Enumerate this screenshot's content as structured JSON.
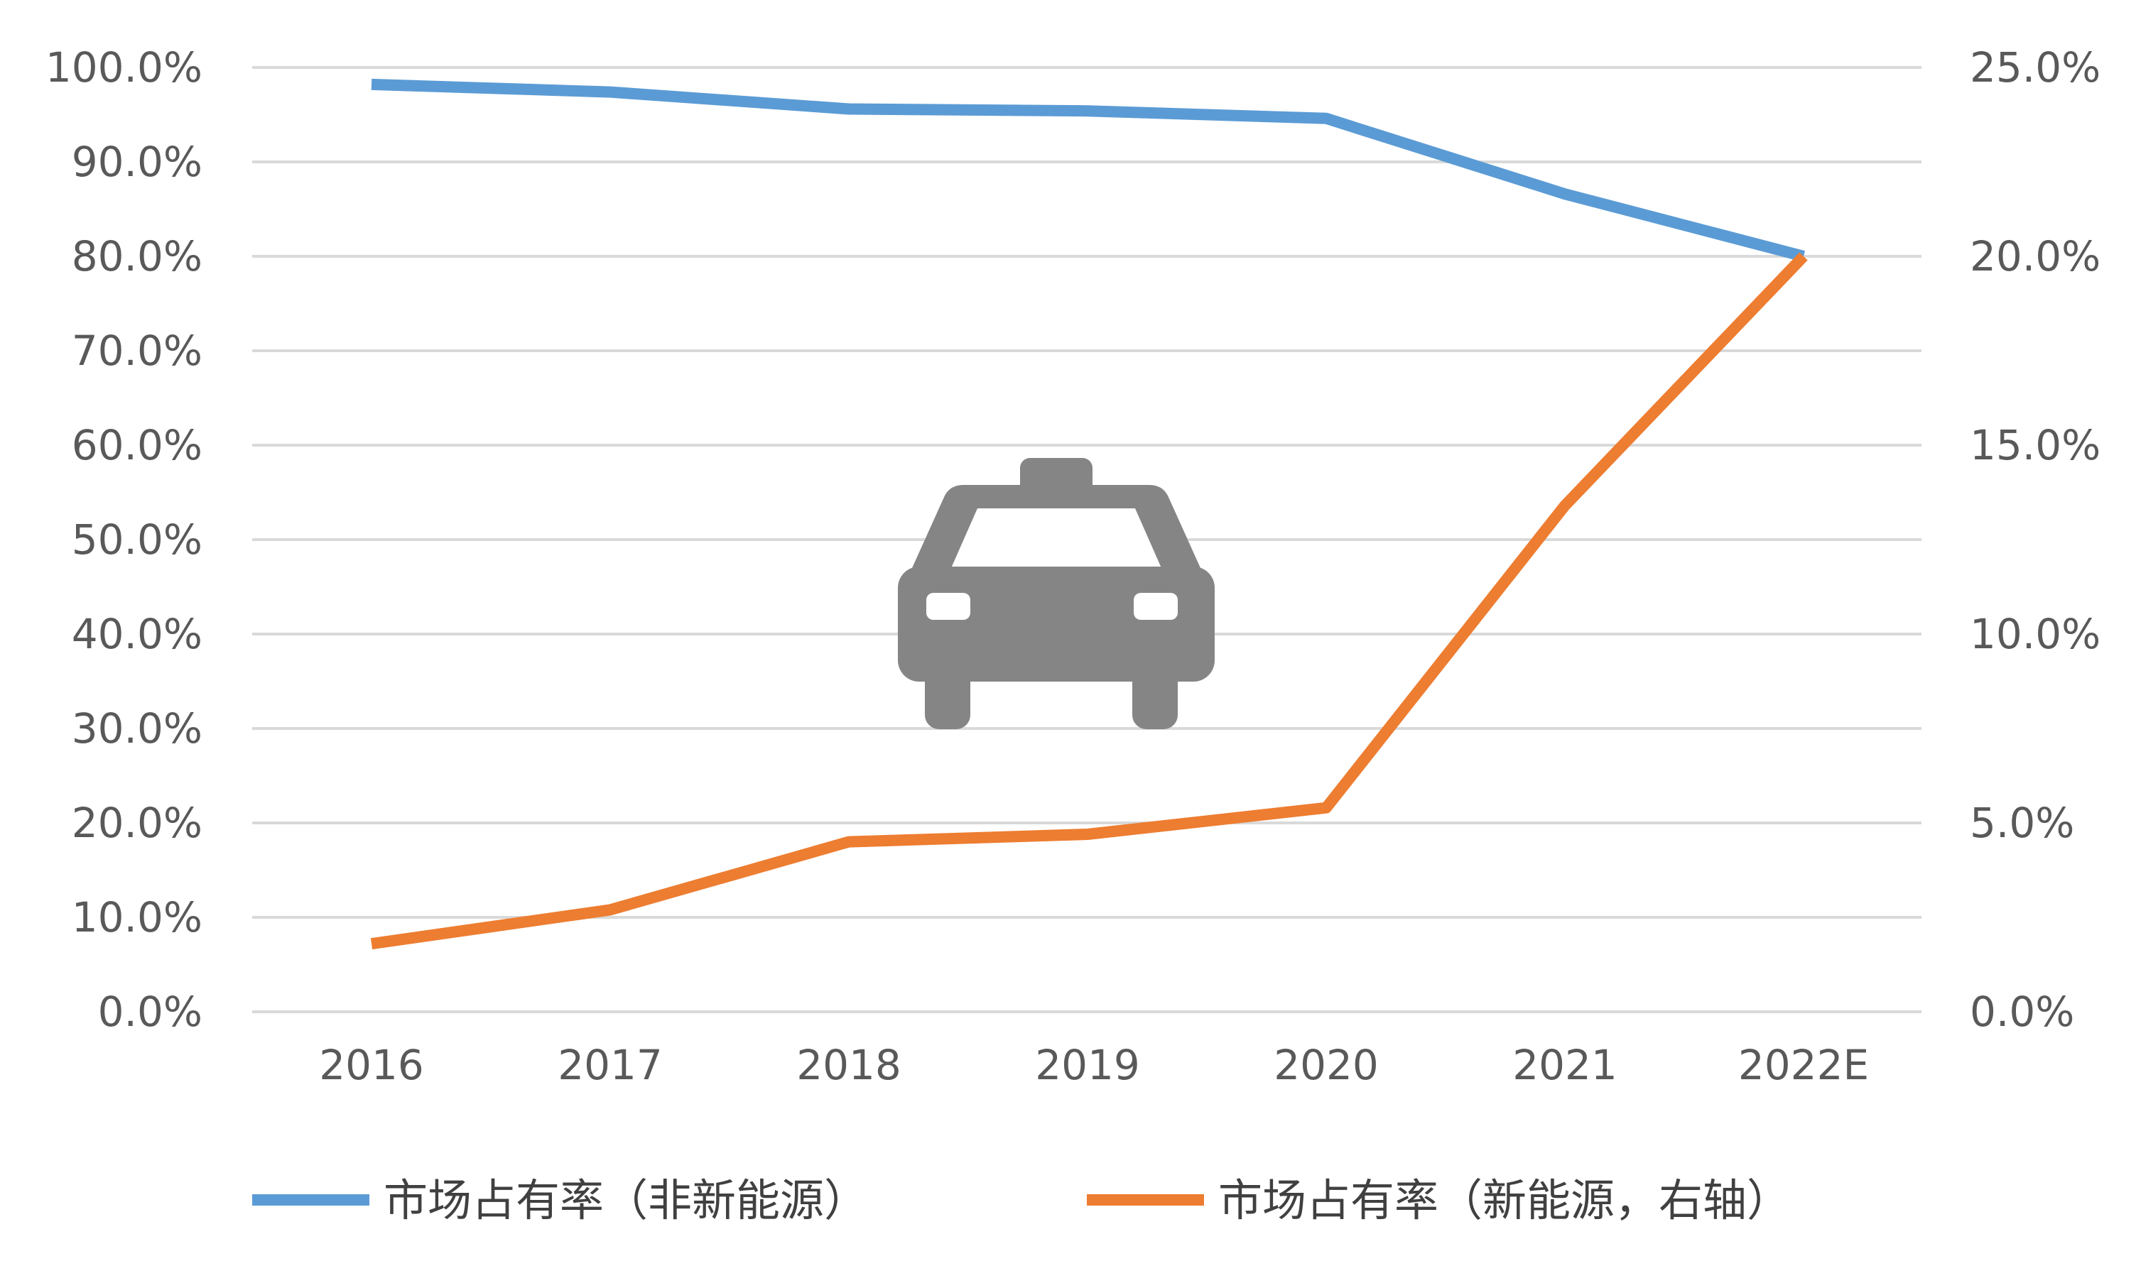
{
  "chart_data": {
    "type": "line",
    "categories": [
      "2016",
      "2017",
      "2018",
      "2019",
      "2020",
      "2021",
      "2022E"
    ],
    "y_left": {
      "ticks": [
        "0.0%",
        "10.0%",
        "20.0%",
        "30.0%",
        "40.0%",
        "50.0%",
        "60.0%",
        "70.0%",
        "80.0%",
        "90.0%",
        "100.0%"
      ],
      "range": [
        0,
        100
      ]
    },
    "y_right": {
      "ticks": [
        "0.0%",
        "5.0%",
        "10.0%",
        "15.0%",
        "20.0%",
        "25.0%"
      ],
      "range": [
        0,
        25
      ]
    },
    "grid": true,
    "legend_position": "bottom",
    "icon": "taxi-icon",
    "series": [
      {
        "name": "市场占有率（非新能源）",
        "axis": "left",
        "color": "#5b9bd5",
        "values": [
          98.2,
          97.4,
          95.6,
          95.4,
          94.6,
          86.6,
          80.0
        ]
      },
      {
        "name": "市场占有率（新能源，右轴）",
        "axis": "right",
        "color": "#ed7d31",
        "values": [
          1.8,
          2.7,
          4.5,
          4.7,
          5.4,
          13.4,
          20.0
        ]
      }
    ]
  }
}
